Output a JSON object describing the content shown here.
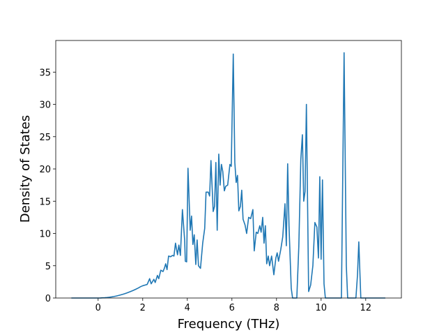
{
  "chart_data": {
    "type": "line",
    "x_label": "Frequency (THz)",
    "y_label": "Density of States",
    "color": "#1f77b4",
    "x": [
      -1.2,
      -1.0,
      -0.5,
      0,
      0.1,
      0.2,
      0.3,
      0.4,
      0.5,
      0.6,
      0.7,
      0.8,
      0.9,
      1.0,
      1.1,
      1.2,
      1.3,
      1.4,
      1.5,
      1.6,
      1.7,
      1.8,
      1.9,
      2.0,
      2.1,
      2.2,
      2.31,
      2.38,
      2.5,
      2.56,
      2.66,
      2.72,
      2.81,
      2.91,
      2.97,
      3.03,
      3.09,
      3.16,
      3.25,
      3.34,
      3.4,
      3.47,
      3.56,
      3.62,
      3.69,
      3.78,
      3.88,
      3.91,
      3.97,
      4.03,
      4.13,
      4.19,
      4.25,
      4.31,
      4.38,
      4.44,
      4.5,
      4.59,
      4.69,
      4.78,
      4.84,
      4.94,
      5.0,
      5.06,
      5.16,
      5.22,
      5.28,
      5.34,
      5.41,
      5.47,
      5.53,
      5.59,
      5.66,
      5.72,
      5.81,
      5.91,
      5.97,
      6.06,
      6.13,
      6.19,
      6.25,
      6.31,
      6.38,
      6.44,
      6.5,
      6.59,
      6.66,
      6.75,
      6.84,
      6.94,
      7.0,
      7.09,
      7.16,
      7.25,
      7.31,
      7.38,
      7.44,
      7.5,
      7.56,
      7.63,
      7.69,
      7.78,
      7.88,
      7.97,
      8.03,
      8.09,
      8.19,
      8.28,
      8.38,
      8.44,
      8.5,
      8.56,
      8.66,
      8.72,
      8.91,
      9.0,
      9.09,
      9.16,
      9.22,
      9.28,
      9.34,
      9.44,
      9.53,
      9.63,
      9.72,
      9.81,
      9.88,
      9.94,
      10.0,
      10.06,
      10.13,
      10.19,
      10.91,
      11.03,
      11.13,
      11.19,
      11.56,
      11.63,
      11.69,
      11.78,
      12.88
    ],
    "values": [
      0,
      0,
      0,
      0,
      0.01,
      0.03,
      0.05,
      0.08,
      0.12,
      0.17,
      0.23,
      0.3,
      0.38,
      0.47,
      0.57,
      0.68,
      0.8,
      0.93,
      1.07,
      1.22,
      1.38,
      1.55,
      1.75,
      1.9,
      2.0,
      2.1,
      3.0,
      2.2,
      2.9,
      2.4,
      3.5,
      3.0,
      4.3,
      4.1,
      4.6,
      5.3,
      4.4,
      6.5,
      6.4,
      6.6,
      6.5,
      8.5,
      6.7,
      8.2,
      6.6,
      13.7,
      9.0,
      5.7,
      5.6,
      20.1,
      10.5,
      12.7,
      8.3,
      9.8,
      5.2,
      9.0,
      5.0,
      4.6,
      8.5,
      10.8,
      16.4,
      16.4,
      15.8,
      21.3,
      13.4,
      14.2,
      21.0,
      10.5,
      22.3,
      17.5,
      20.7,
      19.6,
      16.6,
      17.3,
      17.5,
      20.7,
      20.4,
      37.8,
      21.0,
      17.9,
      19.0,
      13.5,
      14.2,
      16.7,
      12.2,
      11.3,
      10.0,
      12.5,
      12.3,
      13.7,
      7.3,
      10.2,
      10.0,
      11.2,
      10.2,
      12.5,
      8.5,
      11.2,
      5.3,
      6.5,
      5.0,
      6.5,
      3.6,
      6.2,
      7.0,
      5.7,
      7.5,
      9.5,
      14.6,
      8.1,
      20.8,
      11.2,
      1.5,
      0,
      0,
      8.0,
      21.5,
      25.3,
      15.0,
      16.5,
      30.0,
      1.0,
      2.0,
      5.0,
      11.7,
      11.0,
      6.2,
      18.8,
      6.0,
      18.3,
      2.2,
      0,
      0,
      38.0,
      5.0,
      0,
      0,
      3.5,
      8.7,
      0,
      0
    ],
    "xlim": [
      -1.9,
      13.6
    ],
    "ylim": [
      0,
      39.9
    ],
    "xticks": [
      0,
      2,
      4,
      6,
      8,
      10,
      12
    ],
    "yticks": [
      0,
      5,
      10,
      15,
      20,
      25,
      30,
      35
    ]
  }
}
